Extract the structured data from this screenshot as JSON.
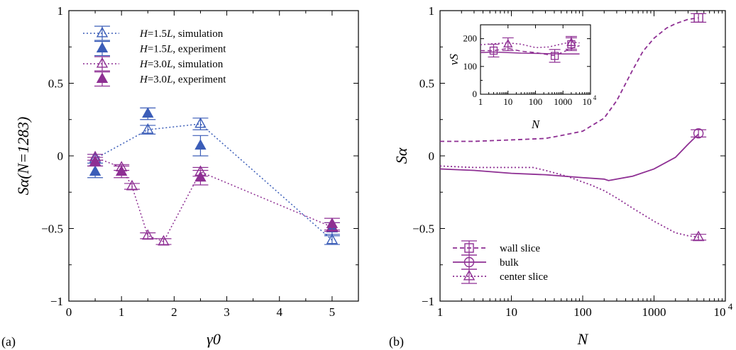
{
  "panel_labels": {
    "a": "(a)",
    "b": "(b)"
  },
  "colors": {
    "blue": "#3b5db8",
    "purple": "#8e2f93"
  },
  "chart_data": [
    {
      "type": "scatter",
      "panel": "(a)",
      "xlabel": "γ0",
      "ylabel": "Sα(N=1283)",
      "xlim": [
        0,
        5.5
      ],
      "ylim": [
        -1,
        1
      ],
      "xticks": [
        "0",
        "1",
        "2",
        "3",
        "4",
        "5"
      ],
      "yticks": [
        "−1",
        "−0.5",
        "0",
        "0.5",
        "1"
      ],
      "legend_position": "top-left",
      "series": [
        {
          "name": "H=1.5L, simulation",
          "name_parts": [
            "H",
            "=1.5",
            "L",
            ", simulation"
          ],
          "color": "#3b5db8",
          "marker": "triangle-open",
          "line": "dotted",
          "x": [
            0.5,
            1.5,
            2.5,
            5.0
          ],
          "y": [
            -0.02,
            0.18,
            0.22,
            -0.58
          ],
          "err": [
            0.03,
            0.03,
            0.04,
            0.03
          ]
        },
        {
          "name": "H=1.5L, experiment",
          "name_parts": [
            "H",
            "=1.5",
            "L",
            ", experiment"
          ],
          "color": "#3b5db8",
          "marker": "triangle-filled",
          "line": "none",
          "x": [
            0.5,
            1.5,
            2.5,
            5.0
          ],
          "y": [
            -0.11,
            0.29,
            0.07,
            -0.5
          ],
          "err": [
            0.04,
            0.04,
            0.07,
            0.04
          ]
        },
        {
          "name": "H=3.0L, simulation",
          "name_parts": [
            "H",
            "=3.0",
            "L",
            ", simulation"
          ],
          "color": "#8e2f93",
          "marker": "triangle-open",
          "line": "dotted",
          "x": [
            0.5,
            1.0,
            1.2,
            1.5,
            1.8,
            2.5,
            5.0
          ],
          "y": [
            -0.01,
            -0.08,
            -0.21,
            -0.55,
            -0.59,
            -0.11,
            -0.49
          ],
          "err": [
            0.02,
            0.02,
            0.02,
            0.02,
            0.02,
            0.03,
            0.03
          ]
        },
        {
          "name": "H=3.0L, experiment",
          "name_parts": [
            "H",
            "=3.0",
            "L",
            ", experiment"
          ],
          "color": "#8e2f93",
          "marker": "triangle-filled",
          "line": "none",
          "x": [
            0.5,
            1.0,
            2.5,
            5.0
          ],
          "y": [
            -0.04,
            -0.11,
            -0.15,
            -0.47
          ],
          "err": [
            0.03,
            0.04,
            0.05,
            0.04
          ]
        }
      ]
    },
    {
      "type": "line",
      "panel": "(b)",
      "xlabel": "N",
      "ylabel": "Sα",
      "xscale": "log",
      "xlim": [
        1,
        10000
      ],
      "ylim": [
        -1,
        1
      ],
      "xticks": [
        "1",
        "10",
        "100",
        "1000",
        "10^4"
      ],
      "yticks": [
        "−1",
        "−0.5",
        "0",
        "0.5",
        "1"
      ],
      "legend_position": "bottom-left",
      "series": [
        {
          "name": "wall slice",
          "color": "#8e2f93",
          "line": "dashed",
          "marker": "square-open",
          "x": [
            1,
            3,
            10,
            30,
            50,
            100,
            200,
            300,
            500,
            700,
            1000,
            1500,
            2000,
            3000,
            4200
          ],
          "y": [
            0.1,
            0.1,
            0.11,
            0.12,
            0.14,
            0.17,
            0.26,
            0.38,
            0.59,
            0.72,
            0.81,
            0.88,
            0.91,
            0.94,
            0.95
          ],
          "marker_at": {
            "x": 4200,
            "y": 0.95,
            "err": 0.03
          }
        },
        {
          "name": "bulk",
          "color": "#8e2f93",
          "line": "solid",
          "marker": "circle-open",
          "x": [
            1,
            3,
            10,
            30,
            100,
            200,
            230,
            300,
            500,
            1000,
            2000,
            3000,
            4200
          ],
          "y": [
            -0.09,
            -0.1,
            -0.12,
            -0.13,
            -0.15,
            -0.16,
            -0.17,
            -0.16,
            -0.14,
            -0.09,
            -0.01,
            0.08,
            0.15
          ],
          "marker_at": {
            "x": 4200,
            "y": 0.155,
            "err": 0.025
          }
        },
        {
          "name": "center slice",
          "color": "#8e2f93",
          "line": "dotted",
          "marker": "triangle-open",
          "x": [
            1,
            3,
            10,
            20,
            30,
            60,
            100,
            130,
            200,
            300,
            500,
            1000,
            2000,
            3000,
            4200
          ],
          "y": [
            -0.07,
            -0.08,
            -0.08,
            -0.08,
            -0.1,
            -0.14,
            -0.18,
            -0.2,
            -0.24,
            -0.29,
            -0.36,
            -0.45,
            -0.53,
            -0.55,
            -0.56
          ],
          "marker_at": {
            "x": 4200,
            "y": -0.56,
            "err": 0.02
          }
        }
      ],
      "inset": {
        "ylabel": "vS",
        "xlabel": "N",
        "xscale": "log",
        "xlim": [
          1,
          10000
        ],
        "ylim": [
          0,
          250
        ],
        "yticks": [
          "0",
          "100",
          "200"
        ],
        "xticks": [
          "1",
          "10",
          "100",
          "1000",
          "10^4"
        ],
        "series": [
          {
            "name": "wall slice",
            "line": "dashed",
            "x": [
              1,
              2,
              3,
              5,
              10,
              30,
              100,
              200,
              400,
              500,
              700,
              1000,
              2000,
              4000
            ],
            "y": [
              157,
              157,
              157,
              160,
              165,
              155,
              150,
              145,
              140,
              140,
              145,
              152,
              165,
              175
            ],
            "marker": "square-open",
            "marker_points": [
              [
                3,
                157
              ],
              [
                500,
                138
              ],
              [
                2000,
                180
              ]
            ]
          },
          {
            "name": "bulk",
            "line": "solid",
            "x": [
              1,
              3,
              10,
              30,
              100,
              300,
              1000,
              4000
            ],
            "y": [
              150,
              152,
              150,
              148,
              147,
              146,
              145,
              145
            ]
          },
          {
            "name": "center slice",
            "line": "dotted",
            "x": [
              1,
              3,
              10,
              30,
              100,
              300,
              1000,
              2000,
              4000
            ],
            "y": [
              178,
              182,
              185,
              180,
              168,
              170,
              182,
              188,
              185
            ],
            "marker": "triangle-open",
            "marker_points": [
              [
                10,
                180
              ],
              [
                2000,
                185
              ]
            ]
          }
        ]
      }
    }
  ]
}
